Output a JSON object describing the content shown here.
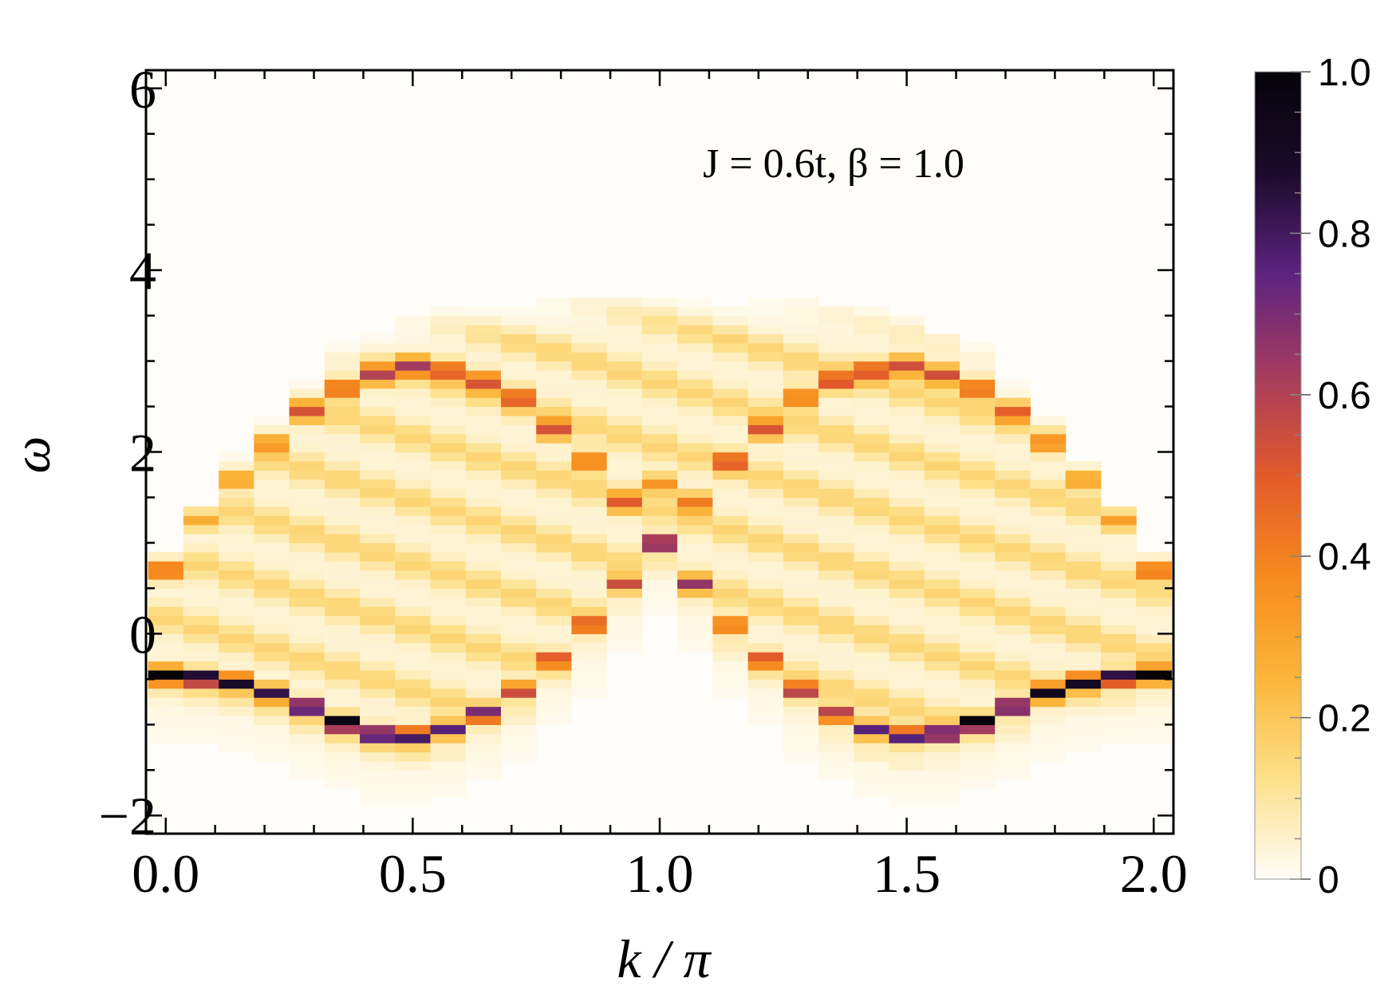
{
  "chart_data": {
    "type": "heatmap",
    "annotation": "J = 0.6t,   β = 1.0",
    "xlabel": "k / π",
    "ylabel": "ω",
    "xlim": [
      -0.04,
      2.04
    ],
    "ylim": [
      -2.2,
      6.2
    ],
    "x_ticks": [
      {
        "value": 0.0,
        "label": "0.0"
      },
      {
        "value": 0.5,
        "label": "0.5"
      },
      {
        "value": 1.0,
        "label": "1.0"
      },
      {
        "value": 1.5,
        "label": "1.5"
      },
      {
        "value": 2.0,
        "label": "2.0"
      }
    ],
    "y_ticks": [
      {
        "value": -2,
        "label": "−2"
      },
      {
        "value": 0,
        "label": "0"
      },
      {
        "value": 2,
        "label": "2"
      },
      {
        "value": 4,
        "label": "4"
      },
      {
        "value": 6,
        "label": "6"
      }
    ],
    "colorbar": {
      "range": [
        0,
        1
      ],
      "ticks": [
        {
          "value": 0,
          "label": "0"
        },
        {
          "value": 0.2,
          "label": "0.2"
        },
        {
          "value": 0.4,
          "label": "0.4"
        },
        {
          "value": 0.6,
          "label": "0.6"
        },
        {
          "value": 0.8,
          "label": "0.8"
        },
        {
          "value": 1.0,
          "label": "1.0"
        }
      ],
      "colors": [
        "#fffdf8",
        "#fde08a",
        "#fbb53a",
        "#f68a1e",
        "#e25a2b",
        "#a53c5e",
        "#5c2380",
        "#1a0b2a",
        "#050308"
      ]
    },
    "k_columns": [
      0.0,
      0.0714,
      0.1429,
      0.2143,
      0.2857,
      0.3571,
      0.4286,
      0.5,
      0.5714,
      0.6429,
      0.7143,
      0.7857,
      0.8571,
      0.9286,
      1.0,
      1.0714,
      1.1429,
      1.2143,
      1.2857,
      1.3571,
      1.4286,
      1.5,
      1.5714,
      1.6429,
      1.7143,
      1.7857,
      1.8571,
      1.9286,
      2.0
    ],
    "band_lower": {
      "description_values": "omega of dominant lower quasiparticle peak per k column",
      "omega": [
        -0.45,
        -0.48,
        -0.53,
        -0.65,
        -0.8,
        -0.98,
        -1.1,
        -1.12,
        -1.05,
        -0.88,
        -0.62,
        -0.28,
        0.1,
        0.55,
        1.0,
        0.55,
        0.1,
        -0.28,
        -0.62,
        -0.88,
        -1.05,
        -1.12,
        -1.1,
        -0.98,
        -0.8,
        -0.65,
        -0.53,
        -0.48,
        -0.45
      ],
      "intensity": [
        0.95,
        0.92,
        0.85,
        0.78,
        0.9,
        1.0,
        0.85,
        0.8,
        0.72,
        0.62,
        0.55,
        0.45,
        0.45,
        0.5,
        0.85,
        0.5,
        0.45,
        0.45,
        0.55,
        0.62,
        0.72,
        0.8,
        0.85,
        1.0,
        0.9,
        0.78,
        0.85,
        0.92,
        0.95
      ]
    },
    "band_upper": {
      "omega": [
        0.7,
        1.25,
        1.7,
        2.1,
        2.45,
        2.7,
        2.85,
        2.95,
        2.9,
        2.78,
        2.6,
        2.25,
        1.9,
        1.45,
        1.65,
        1.45,
        1.9,
        2.25,
        2.6,
        2.78,
        2.9,
        2.95,
        2.85,
        2.7,
        2.45,
        2.1,
        1.7,
        1.25,
        0.7
      ],
      "intensity": [
        0.45,
        0.25,
        0.3,
        0.3,
        0.4,
        0.45,
        0.5,
        0.5,
        0.45,
        0.45,
        0.4,
        0.45,
        0.4,
        0.35,
        0.3,
        0.35,
        0.4,
        0.45,
        0.4,
        0.45,
        0.45,
        0.5,
        0.5,
        0.45,
        0.4,
        0.3,
        0.3,
        0.25,
        0.45
      ]
    },
    "spectral_top": [
      0.9,
      1.45,
      2.0,
      2.5,
      2.9,
      3.2,
      3.4,
      3.55,
      3.62,
      3.68,
      3.72,
      3.75,
      3.78,
      3.8,
      3.82,
      3.8,
      3.78,
      3.75,
      3.72,
      3.68,
      3.62,
      3.55,
      3.4,
      3.2,
      2.9,
      2.5,
      2.0,
      1.45,
      0.9
    ]
  }
}
